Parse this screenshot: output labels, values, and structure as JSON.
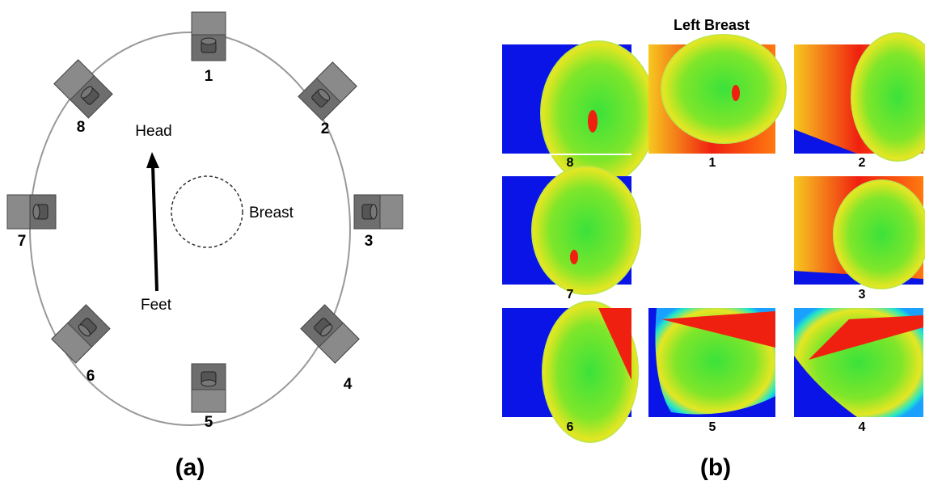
{
  "panel_a": {
    "cameras": [
      "1",
      "2",
      "3",
      "4",
      "5",
      "6",
      "7",
      "8"
    ],
    "head": "Head",
    "feet": "Feet",
    "breast": "Breast",
    "caption": "(a)"
  },
  "panel_b": {
    "title": "Left Breast",
    "images": [
      {
        "label": "8"
      },
      {
        "label": "1"
      },
      {
        "label": "2"
      },
      {
        "label": "7"
      },
      {
        "label": "3"
      },
      {
        "label": "6"
      },
      {
        "label": "5"
      },
      {
        "label": "4"
      }
    ],
    "caption": "(b)"
  }
}
